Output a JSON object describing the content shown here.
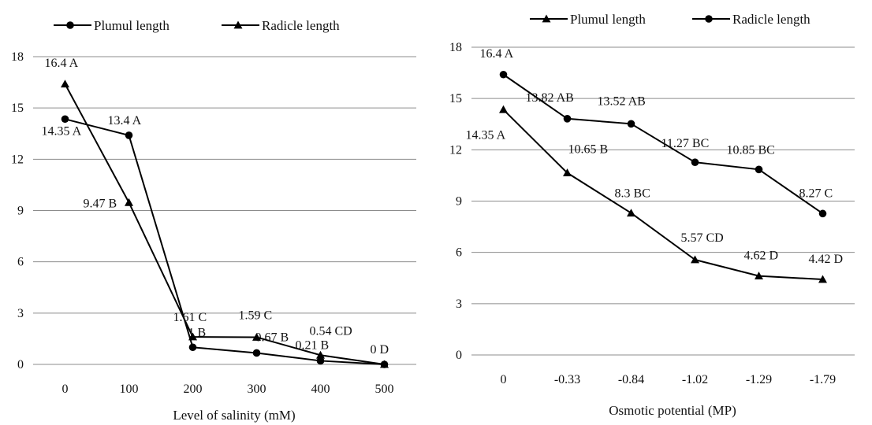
{
  "chart_data": [
    {
      "type": "line",
      "xlabel": "Level of salinity (mM)",
      "ylabel": "",
      "categories": [
        "0",
        "100",
        "200",
        "300",
        "400",
        "500"
      ],
      "ylim": [
        0,
        18
      ],
      "yticks": [
        "0",
        "3",
        "6",
        "9",
        "12",
        "15",
        "18"
      ],
      "grid": true,
      "legend_position": "top",
      "series": [
        {
          "name": "Plumul length",
          "marker": "circle",
          "values": [
            14.35,
            13.4,
            1,
            0.67,
            0.21,
            0
          ],
          "labels": [
            "14.35 A",
            "13.4 A",
            "1 B",
            "0.67 B",
            "0.21 B",
            "0 D"
          ]
        },
        {
          "name": "Radicle length",
          "marker": "triangle",
          "values": [
            16.4,
            9.47,
            1.61,
            1.59,
            0.54,
            0
          ],
          "labels": [
            "16.4 A",
            "9.47 B",
            "1.61 C",
            "1.59 C",
            "0.54 CD",
            ""
          ]
        }
      ]
    },
    {
      "type": "line",
      "xlabel": "Osmotic potential (MP)",
      "ylabel": "",
      "categories": [
        "0",
        "-0.33",
        "-0.84",
        "-1.02",
        "-1.29",
        "-1.79"
      ],
      "ylim": [
        0,
        18
      ],
      "yticks": [
        "0",
        "3",
        "6",
        "9",
        "12",
        "15",
        "18"
      ],
      "grid": true,
      "legend_position": "top",
      "series": [
        {
          "name": "Plumul length",
          "marker": "triangle",
          "values": [
            14.35,
            10.65,
            8.3,
            5.57,
            4.62,
            4.42
          ],
          "labels": [
            "14.35 A",
            "10.65 B",
            "8.3 BC",
            "5.57 CD",
            "4.62 D",
            "4.42 D"
          ]
        },
        {
          "name": "Radicle length",
          "marker": "circle",
          "values": [
            16.4,
            13.82,
            13.52,
            11.27,
            10.85,
            8.27
          ],
          "labels": [
            "16.4 A",
            "13.82 AB",
            "13.52 AB",
            "11.27 BC",
            "10.85 BC",
            "8.27 C"
          ]
        }
      ]
    }
  ]
}
